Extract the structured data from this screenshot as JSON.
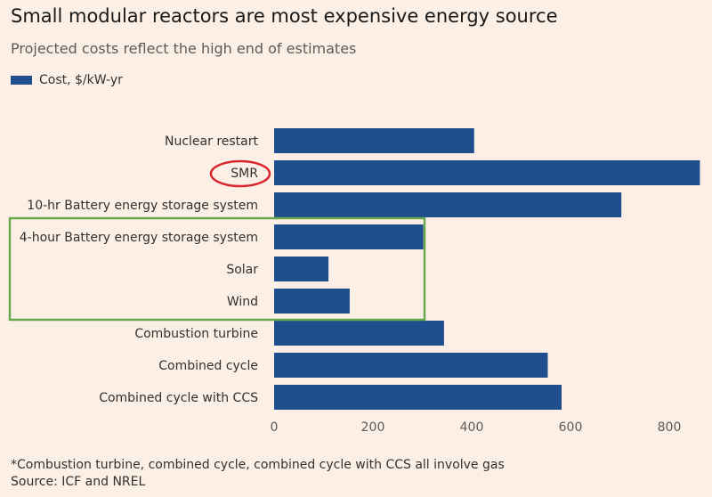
{
  "chart_data": {
    "type": "bar",
    "orientation": "horizontal",
    "title": "Small modular reactors are most expensive energy source",
    "subtitle": "Projected costs reflect the high end of estimates",
    "categories": [
      "Nuclear restart",
      "SMR",
      "10-hr Battery energy storage system",
      "4-hour Battery energy storage system",
      "Solar",
      "Wind",
      "Combustion turbine",
      "Combined cycle",
      "Combined cycle with CCS"
    ],
    "series": [
      {
        "name": "Cost, $/kW-yr",
        "color": "#1f4e8f",
        "values": [
          405,
          862,
          703,
          302,
          110,
          153,
          344,
          554,
          582
        ]
      }
    ],
    "xlim": [
      0,
      880
    ],
    "xticks": [
      "0",
      "200",
      "400",
      "600",
      "800"
    ],
    "xtick_values": [
      0,
      200,
      400,
      600,
      800
    ],
    "legend_position": "top-left",
    "grid": false,
    "annotations": {
      "highlighted_category_circle": "SMR",
      "circle_color": "#d9262c",
      "grouped_box_categories": [
        "4-hour Battery energy storage system",
        "Solar",
        "Wind"
      ],
      "box_color": "#6aa84f"
    }
  },
  "footnote": {
    "note": "*Combustion turbine, combined cycle, combined cycle with CCS all involve gas",
    "source": "Source: ICF and NREL"
  }
}
